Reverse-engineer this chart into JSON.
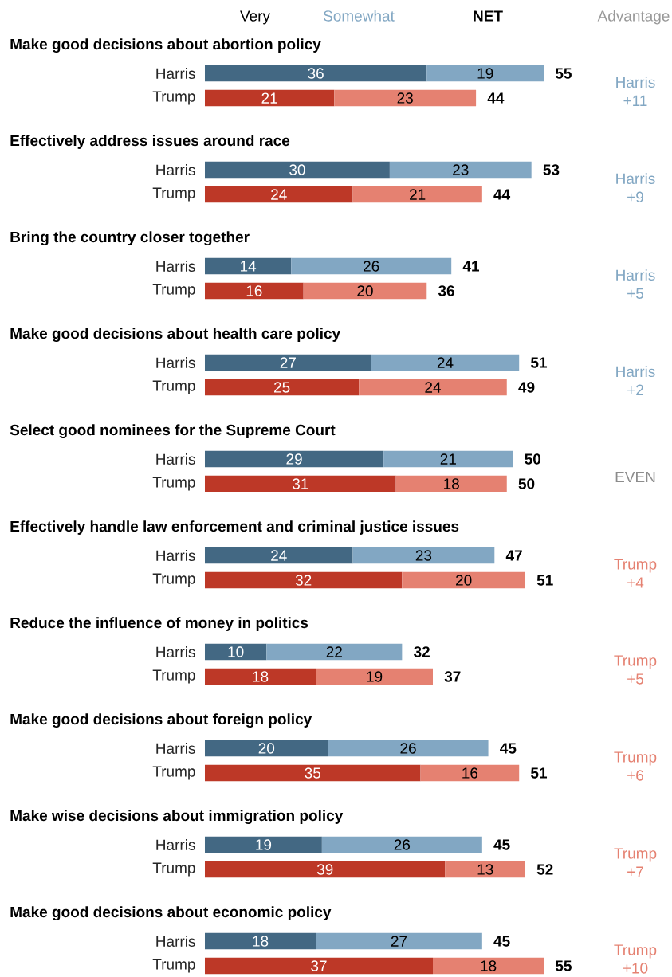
{
  "chart_data": [
    {
      "type": "bar",
      "orientation": "horizontal",
      "stacked": true,
      "data_labels": true,
      "title": "Make good decisions about abortion policy",
      "categories": [
        "Harris",
        "Trump"
      ],
      "series": [
        {
          "name": "Very",
          "colors": [
            "#436883",
            "#bd3827"
          ],
          "values": [
            36,
            21
          ]
        },
        {
          "name": "Somewhat",
          "colors": [
            "#82a7c3",
            "#e58171"
          ],
          "values": [
            19,
            23
          ]
        }
      ],
      "totals": [
        "55",
        "44"
      ],
      "annotations": [
        "Harris +11",
        "NET",
        "Advantage"
      ]
    },
    {
      "type": "bar",
      "orientation": "horizontal",
      "stacked": true,
      "data_labels": true,
      "title": "Effectively address issues around race",
      "categories": [
        "Harris",
        "Trump"
      ],
      "series": [
        {
          "colors": [
            "#436883",
            "#bd3827"
          ],
          "values": [
            30,
            24
          ]
        },
        {
          "colors": [
            "#82a7c3",
            "#e58171"
          ],
          "values": [
            23,
            21
          ]
        }
      ],
      "totals": [
        "53",
        "44"
      ],
      "annotations": [
        "Harris +9"
      ]
    },
    {
      "type": "bar",
      "orientation": "horizontal",
      "stacked": true,
      "data_labels": true,
      "title": "Bring the country closer together",
      "categories": [
        "Harris",
        "Trump"
      ],
      "series": [
        {
          "colors": [
            "#436883",
            "#bd3827"
          ],
          "values": [
            14,
            16
          ]
        },
        {
          "colors": [
            "#82a7c3",
            "#e58171"
          ],
          "values": [
            26,
            20
          ]
        }
      ],
      "totals": [
        "41",
        "36"
      ],
      "annotations": [
        "Harris +5"
      ]
    },
    {
      "type": "bar",
      "orientation": "horizontal",
      "stacked": true,
      "data_labels": true,
      "title": "Make good decisions about health care policy",
      "categories": [
        "Harris",
        "Trump"
      ],
      "series": [
        {
          "colors": [
            "#436883",
            "#bd3827"
          ],
          "values": [
            27,
            25
          ]
        },
        {
          "colors": [
            "#82a7c3",
            "#e58171"
          ],
          "values": [
            24,
            24
          ]
        }
      ],
      "totals": [
        "51",
        "49"
      ],
      "annotations": [
        "Harris +2"
      ]
    },
    {
      "type": "bar",
      "orientation": "horizontal",
      "stacked": true,
      "data_labels": true,
      "title": "Select good nominees for the Supreme Court",
      "categories": [
        "Harris",
        "Trump"
      ],
      "series": [
        {
          "colors": [
            "#436883",
            "#bd3827"
          ],
          "values": [
            29,
            31
          ]
        },
        {
          "colors": [
            "#82a7c3",
            "#e58171"
          ],
          "values": [
            21,
            18
          ]
        }
      ],
      "totals": [
        "50",
        "50"
      ],
      "annotations": [
        "EVEN"
      ]
    },
    {
      "type": "bar",
      "orientation": "horizontal",
      "stacked": true,
      "data_labels": true,
      "title": "Effectively handle law enforcement and criminal justice issues",
      "categories": [
        "Harris",
        "Trump"
      ],
      "series": [
        {
          "colors": [
            "#436883",
            "#bd3827"
          ],
          "values": [
            24,
            32
          ]
        },
        {
          "colors": [
            "#82a7c3",
            "#e58171"
          ],
          "values": [
            23,
            20
          ]
        }
      ],
      "totals": [
        "47",
        "51"
      ],
      "annotations": [
        "Trump +4"
      ]
    },
    {
      "type": "bar",
      "orientation": "horizontal",
      "stacked": true,
      "data_labels": true,
      "title": "Reduce the influence of money in politics",
      "categories": [
        "Harris",
        "Trump"
      ],
      "series": [
        {
          "colors": [
            "#436883",
            "#bd3827"
          ],
          "values": [
            10,
            18
          ]
        },
        {
          "colors": [
            "#82a7c3",
            "#e58171"
          ],
          "values": [
            22,
            19
          ]
        }
      ],
      "totals": [
        "32",
        "37"
      ],
      "annotations": [
        "Trump +5"
      ]
    },
    {
      "type": "bar",
      "orientation": "horizontal",
      "stacked": true,
      "data_labels": true,
      "title": "Make good decisions about foreign policy",
      "categories": [
        "Harris",
        "Trump"
      ],
      "series": [
        {
          "colors": [
            "#436883",
            "#bd3827"
          ],
          "values": [
            20,
            35
          ]
        },
        {
          "colors": [
            "#82a7c3",
            "#e58171"
          ],
          "values": [
            26,
            16
          ]
        }
      ],
      "totals": [
        "45",
        "51"
      ],
      "annotations": [
        "Trump +6"
      ]
    },
    {
      "type": "bar",
      "orientation": "horizontal",
      "stacked": true,
      "data_labels": true,
      "title": "Make wise decisions about immigration policy",
      "categories": [
        "Harris",
        "Trump"
      ],
      "series": [
        {
          "colors": [
            "#436883",
            "#bd3827"
          ],
          "values": [
            19,
            39
          ]
        },
        {
          "colors": [
            "#82a7c3",
            "#e58171"
          ],
          "values": [
            26,
            13
          ]
        }
      ],
      "totals": [
        "45",
        "52"
      ],
      "annotations": [
        "Trump +7"
      ]
    },
    {
      "type": "bar",
      "orientation": "horizontal",
      "stacked": true,
      "data_labels": true,
      "title": "Make good decisions about economic policy",
      "categories": [
        "Harris",
        "Trump"
      ],
      "series": [
        {
          "colors": [
            "#436883",
            "#bd3827"
          ],
          "values": [
            18,
            37
          ]
        },
        {
          "colors": [
            "#82a7c3",
            "#e58171"
          ],
          "values": [
            27,
            18
          ]
        }
      ],
      "totals": [
        "45",
        "55"
      ],
      "annotations": [
        "Trump +10"
      ]
    }
  ]
}
